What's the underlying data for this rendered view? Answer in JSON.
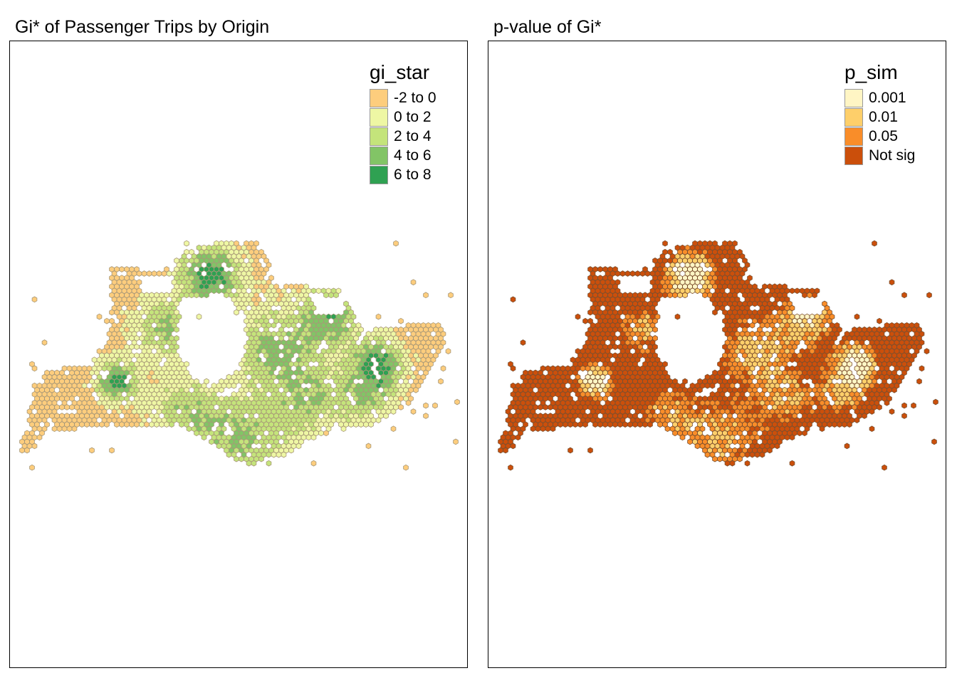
{
  "panels": [
    {
      "title": "Gi* of Passenger Trips by Origin",
      "legend": {
        "title": "gi_star",
        "items": [
          {
            "label": "-2 to 0",
            "color": "#FDCD7D"
          },
          {
            "label": "0 to 2",
            "color": "#EEF7A4"
          },
          {
            "label": "2 to 4",
            "color": "#C4E47B"
          },
          {
            "label": "4 to 6",
            "color": "#82C466"
          },
          {
            "label": "6 to 8",
            "color": "#2FA152"
          }
        ]
      }
    },
    {
      "title": "p-value of Gi*",
      "legend": {
        "title": "p_sim",
        "items": [
          {
            "label": "0.001",
            "color": "#FFF5C4"
          },
          {
            "label": "0.01",
            "color": "#FECF6A"
          },
          {
            "label": "0.05",
            "color": "#F98D29"
          },
          {
            "label": "Not sig",
            "color": "#CB4F0B"
          }
        ]
      }
    }
  ],
  "chart_data": {
    "type": "choropleth",
    "geometry": "hexagon grid",
    "border_color": "#999999"
  }
}
